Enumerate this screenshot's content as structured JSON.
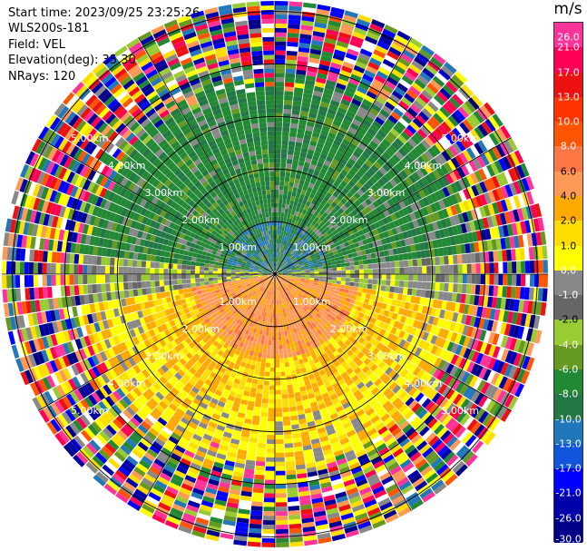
{
  "info": {
    "start_time": "Start time: 2023/09/25 23:25:26",
    "site": "WLS200s-181",
    "field": "Field: VEL",
    "elevation": "Elevation(deg): 35.30",
    "nrays": "NRays: 120"
  },
  "colorbar": {
    "unit": "m/s",
    "ticks": [
      "26.0",
      "21.0",
      "17.0",
      "13.0",
      "10.0",
      "8.0",
      "6.0",
      "4.0",
      "2.0",
      "1.0",
      "0.0",
      "-1.0",
      "-2.0",
      "-4.0",
      "-6.0",
      "-8.0",
      "-10.0",
      "-13.0",
      "-17.0",
      "-21.0",
      "-26.0",
      "-30.0"
    ],
    "colors": [
      "#ff3399",
      "#ff0055",
      "#ee1111",
      "#ff3300",
      "#ff5500",
      "#ff7744",
      "#ff9955",
      "#ffaa00",
      "#ffdd00",
      "#ffff00",
      "#888888",
      "#666666",
      "#99cc33",
      "#669922",
      "#228833",
      "#227744",
      "#2277bb",
      "#1155dd",
      "#0000ff",
      "#0000aa",
      "#000088"
    ]
  },
  "range_labels": [
    "1.00km",
    "2.00km",
    "3.00km",
    "4.00km",
    "5.00km"
  ]
}
